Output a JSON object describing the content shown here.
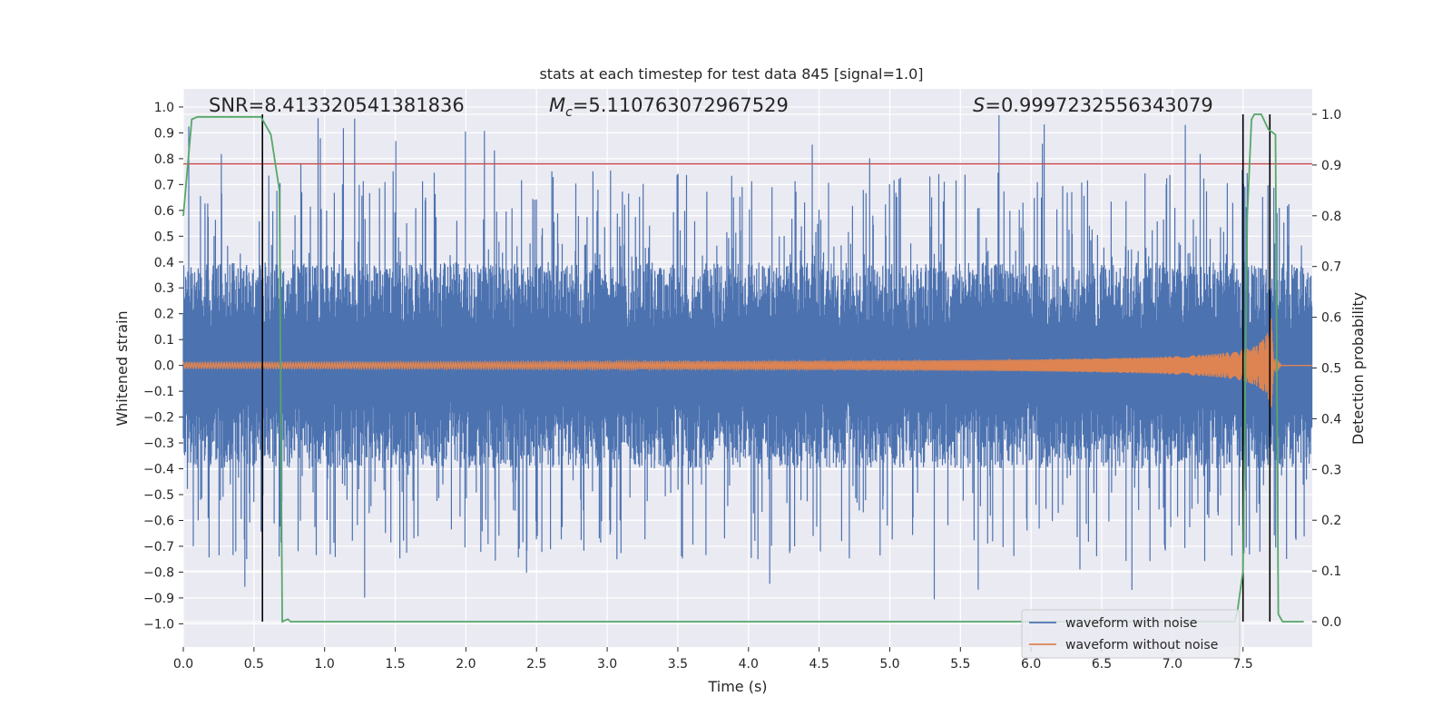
{
  "chart_data": {
    "type": "line",
    "title": "stats at each timestep for test data 845 [signal=1.0]",
    "xlabel": "Time (s)",
    "ylabel": "Whitened strain",
    "y2label": "Detection probability",
    "xlim": [
      0.0,
      7.99
    ],
    "ylim": [
      -1.09,
      1.07
    ],
    "y2lim": [
      -0.05,
      1.05
    ],
    "xticks": [
      "0.0",
      "0.5",
      "1.0",
      "1.5",
      "2.0",
      "2.5",
      "3.0",
      "3.5",
      "4.0",
      "4.5",
      "5.0",
      "5.5",
      "6.0",
      "6.5",
      "7.0",
      "7.5"
    ],
    "yticks": [
      "1.0",
      "0.9",
      "0.8",
      "0.7",
      "0.6",
      "0.5",
      "0.4",
      "0.3",
      "0.2",
      "0.1",
      "0.0",
      "−0.1",
      "−0.2",
      "−0.3",
      "−0.4",
      "−0.5",
      "−0.6",
      "−0.7",
      "−0.8",
      "−0.9",
      "−1.0"
    ],
    "y2ticks": [
      "1.0",
      "0.9",
      "0.8",
      "0.7",
      "0.6",
      "0.5",
      "0.4",
      "0.3",
      "0.2",
      "0.1",
      "0.0"
    ],
    "grid": true,
    "legend_position": "lower-right",
    "annotations": {
      "snr": "SNR=8.413320541381836",
      "mc_symbol": "M",
      "mc_sub": "c",
      "mc_value": "=5.110763072967529",
      "s_symbol": "S",
      "s_value": "=0.9997232556343079"
    },
    "threshold": 0.78,
    "vlines": [
      0.56,
      7.5,
      7.69
    ],
    "series": [
      {
        "name": "waveform with noise",
        "color": "#4c72b0",
        "kind": "noise",
        "amplitude_range": [
          -0.91,
          0.97
        ]
      },
      {
        "name": "waveform without noise",
        "color": "#dd8452",
        "kind": "chirp",
        "x_end": 7.77,
        "peak": [
          7.7,
          0.19
        ]
      },
      {
        "name": "detection probability",
        "color": "#55a868",
        "x": [
          0.0,
          0.06,
          0.1,
          0.3,
          0.55,
          0.62,
          0.68,
          0.7,
          0.74,
          0.76,
          7.44,
          7.46,
          7.5,
          7.53,
          7.56,
          7.58,
          7.63,
          7.68,
          7.73,
          7.75,
          7.78,
          7.85,
          7.93
        ],
        "y": [
          0.8,
          0.99,
          0.995,
          0.995,
          0.995,
          0.96,
          0.85,
          0.0,
          0.005,
          0.0,
          0.0,
          0.02,
          0.1,
          0.8,
          0.99,
          1.0,
          1.0,
          0.97,
          0.96,
          0.015,
          0.0,
          0.0,
          0.0
        ]
      }
    ],
    "threshold_color": "#c44e52"
  }
}
